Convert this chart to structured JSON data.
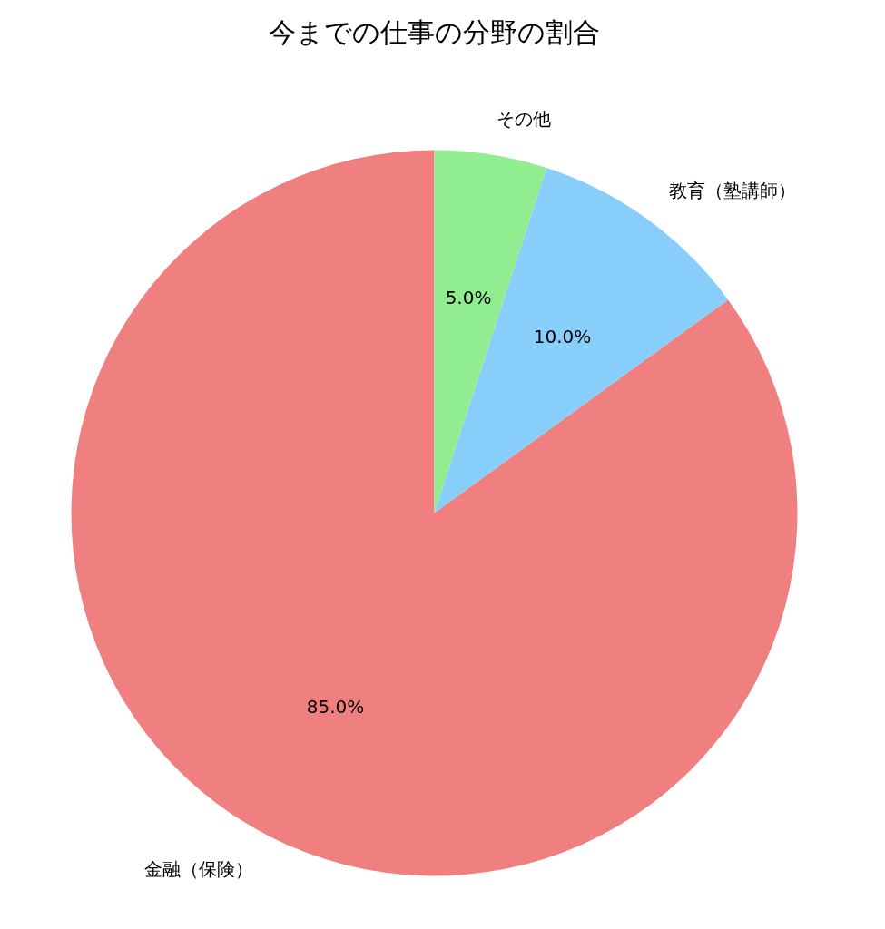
{
  "chart_data": {
    "type": "pie",
    "title": "今までの仕事の分野の割合",
    "categories": [
      "金融（保険）",
      "教育（塾講師）",
      "その他"
    ],
    "values": [
      85,
      10,
      5
    ],
    "colors": [
      "#f08080",
      "#87cefa",
      "#90ee90"
    ],
    "value_labels": [
      "85.0%",
      "10.0%",
      "5.0%"
    ]
  }
}
